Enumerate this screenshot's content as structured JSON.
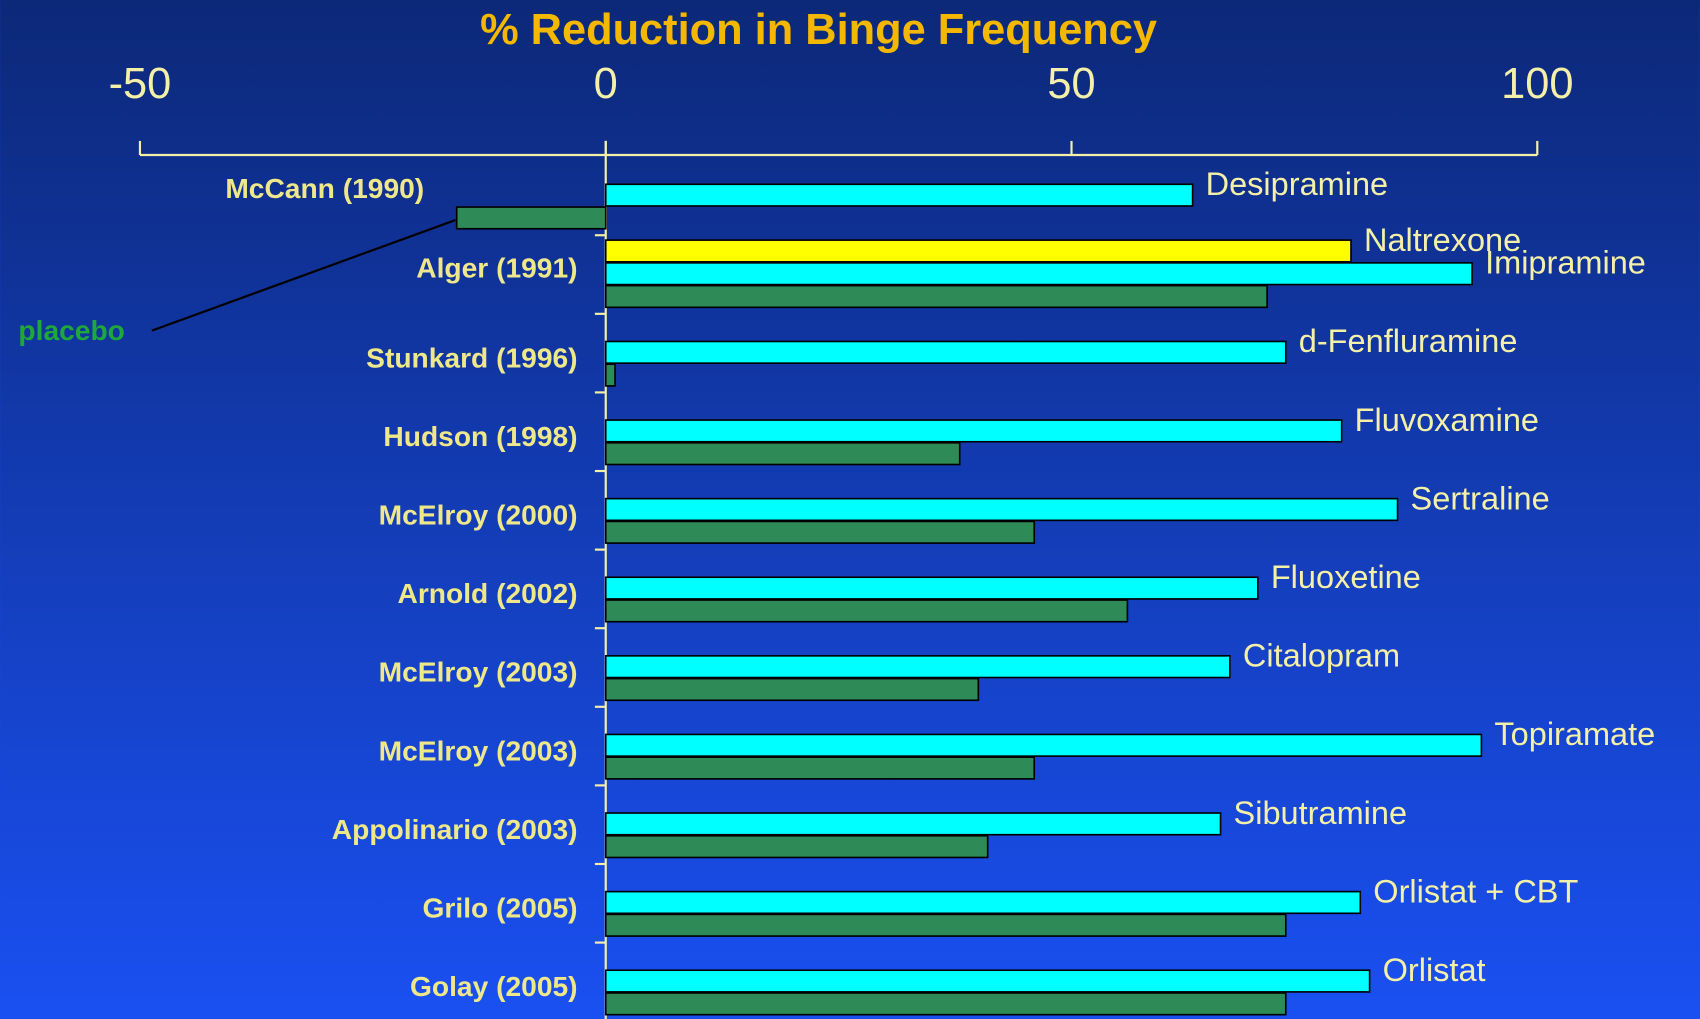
{
  "chart_data": {
    "type": "grouped-hbar",
    "title": "% Reduction in Binge Frequency",
    "xlim": [
      -50,
      100
    ],
    "xticks": [
      -50,
      0,
      50,
      100
    ],
    "placebo_label": "placebo",
    "placebo_color": "#2e8b57",
    "studies": [
      {
        "name": "McCann (1990)",
        "drugs": [
          {
            "name": "Desipramine",
            "value": 63,
            "color": "#00ffff"
          }
        ],
        "placebo": -16
      },
      {
        "name": "Alger (1991)",
        "drugs": [
          {
            "name": "Naltrexone",
            "value": 80,
            "color": "#ffff00"
          },
          {
            "name": "Imipramine",
            "value": 93,
            "color": "#00ffff"
          }
        ],
        "placebo": 71
      },
      {
        "name": "Stunkard (1996)",
        "drugs": [
          {
            "name": "d-Fenfluramine",
            "value": 73,
            "color": "#00ffff"
          }
        ],
        "placebo": 1
      },
      {
        "name": "Hudson (1998)",
        "drugs": [
          {
            "name": "Fluvoxamine",
            "value": 79,
            "color": "#00ffff"
          }
        ],
        "placebo": 38
      },
      {
        "name": "McElroy (2000)",
        "drugs": [
          {
            "name": "Sertraline",
            "value": 85,
            "color": "#00ffff"
          }
        ],
        "placebo": 46
      },
      {
        "name": "Arnold (2002)",
        "drugs": [
          {
            "name": "Fluoxetine",
            "value": 70,
            "color": "#00ffff"
          }
        ],
        "placebo": 56
      },
      {
        "name": "McElroy (2003)",
        "drugs": [
          {
            "name": "Citalopram",
            "value": 67,
            "color": "#00ffff"
          }
        ],
        "placebo": 40
      },
      {
        "name": "McElroy (2003)",
        "drugs": [
          {
            "name": "Topiramate",
            "value": 94,
            "color": "#00ffff"
          }
        ],
        "placebo": 46
      },
      {
        "name": "Appolinario (2003)",
        "drugs": [
          {
            "name": "Sibutramine",
            "value": 66,
            "color": "#00ffff"
          }
        ],
        "placebo": 41
      },
      {
        "name": "Grilo (2005)",
        "drugs": [
          {
            "name": "Orlistat + CBT",
            "value": 81,
            "color": "#00ffff"
          }
        ],
        "placebo": 73
      },
      {
        "name": "Golay (2005)",
        "drugs": [
          {
            "name": "Orlistat",
            "value": 82,
            "color": "#00ffff"
          }
        ],
        "placebo": 73
      }
    ]
  }
}
